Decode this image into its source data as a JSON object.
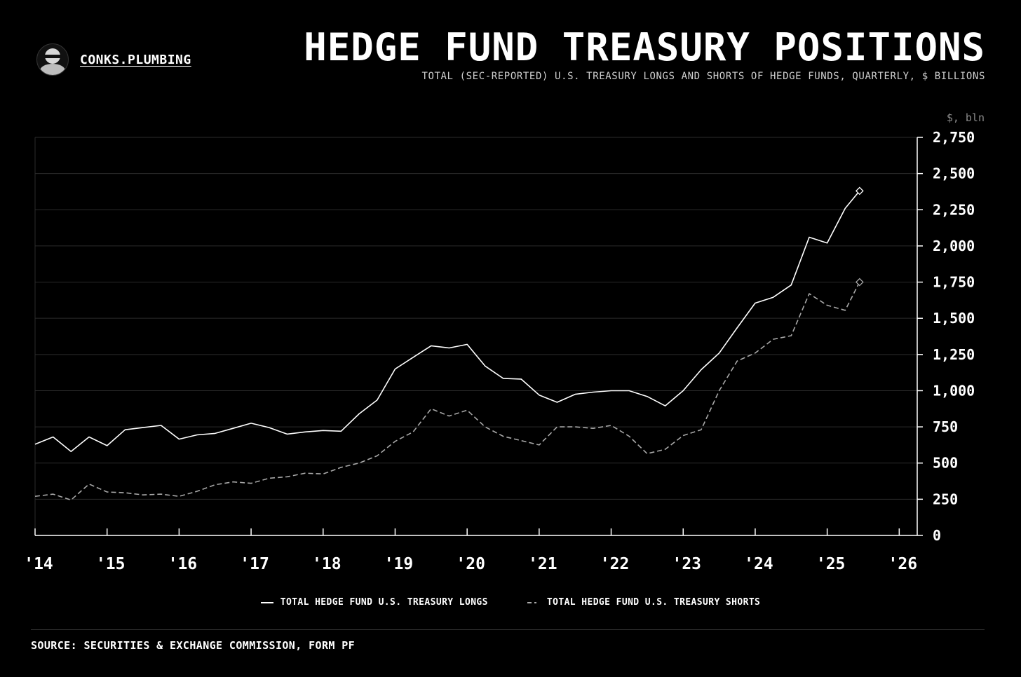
{
  "brand": {
    "name": "CONKS.PLUMBING",
    "icon": "ninja-avatar-icon"
  },
  "header": {
    "title": "HEDGE FUND TREASURY POSITIONS",
    "subtitle": "TOTAL (SEC-REPORTED) U.S. TREASURY LONGS AND SHORTS OF HEDGE FUNDS, QUARTERLY, $ BILLIONS"
  },
  "chart_data": {
    "type": "line",
    "ylabel": "$, bln",
    "ylim": [
      0,
      2750
    ],
    "yticks": [
      0,
      250,
      500,
      750,
      1000,
      1250,
      1500,
      1750,
      2000,
      2250,
      2500,
      2750
    ],
    "xlim": [
      2014,
      2026.25
    ],
    "xticks": [
      2014,
      2015,
      2016,
      2017,
      2018,
      2019,
      2020,
      2021,
      2022,
      2023,
      2024,
      2025,
      2026
    ],
    "xtick_labels": [
      "'14",
      "'15",
      "'16",
      "'17",
      "'18",
      "'19",
      "'20",
      "'21",
      "'22",
      "'23",
      "'24",
      "'25",
      "'26"
    ],
    "grid": true,
    "axis_position": "right",
    "legend_position": "bottom-center",
    "x": [
      2014.0,
      2014.25,
      2014.5,
      2014.75,
      2015.0,
      2015.25,
      2015.5,
      2015.75,
      2016.0,
      2016.25,
      2016.5,
      2016.75,
      2017.0,
      2017.25,
      2017.5,
      2017.75,
      2018.0,
      2018.25,
      2018.5,
      2018.75,
      2019.0,
      2019.25,
      2019.5,
      2019.75,
      2020.0,
      2020.25,
      2020.5,
      2020.75,
      2021.0,
      2021.25,
      2021.5,
      2021.75,
      2022.0,
      2022.25,
      2022.5,
      2022.75,
      2023.0,
      2023.25,
      2023.5,
      2023.75,
      2024.0,
      2024.25,
      2024.5,
      2024.75,
      2025.0,
      2025.25,
      2025.45
    ],
    "series": [
      {
        "name": "TOTAL HEDGE FUND U.S. TREASURY LONGS",
        "color": "#ffffff",
        "style": "solid",
        "values": [
          630,
          680,
          580,
          680,
          620,
          730,
          745,
          760,
          665,
          695,
          705,
          740,
          775,
          745,
          700,
          715,
          725,
          720,
          840,
          935,
          1150,
          1230,
          1310,
          1295,
          1320,
          1170,
          1085,
          1080,
          970,
          920,
          975,
          990,
          1000,
          1000,
          960,
          895,
          1000,
          1145,
          1260,
          1435,
          1605,
          1645,
          1730,
          2060,
          2020,
          2260,
          2380
        ]
      },
      {
        "name": "TOTAL HEDGE FUND U.S. TREASURY SHORTS",
        "color": "#a8a8a8",
        "style": "dashed",
        "values": [
          270,
          285,
          245,
          355,
          300,
          295,
          280,
          285,
          270,
          305,
          350,
          370,
          360,
          395,
          405,
          430,
          425,
          470,
          500,
          550,
          650,
          715,
          875,
          825,
          865,
          750,
          685,
          655,
          625,
          750,
          750,
          740,
          760,
          685,
          565,
          595,
          690,
          730,
          1000,
          1205,
          1260,
          1355,
          1380,
          1670,
          1590,
          1555,
          1750
        ]
      }
    ]
  },
  "footer": {
    "source": "SOURCE: SECURITIES & EXCHANGE COMMISSION, FORM PF"
  }
}
